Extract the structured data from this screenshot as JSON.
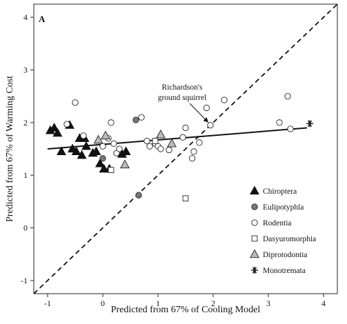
{
  "chart_data": {
    "type": "scatter",
    "panel_label": "A",
    "xlabel": "Predicted from 67% of Cooling Model",
    "ylabel": "Predicted from 67% of Warming Cost",
    "xlim": [
      -1.25,
      4.25
    ],
    "ylim": [
      -1.25,
      4.25
    ],
    "xticks": [
      -1,
      0,
      1,
      2,
      3,
      4
    ],
    "yticks": [
      -1,
      0,
      1,
      2,
      3,
      4
    ],
    "grid": false,
    "legend_position": "bottom-right",
    "colors": {
      "filled": "#111111",
      "dark_gray": "#777777",
      "light_gray": "#bbbbbb",
      "open": "#ffffff",
      "line": "#111111"
    },
    "series": [
      {
        "name": "Chiroptera",
        "marker": "triangle",
        "fill": "filled",
        "points": [
          {
            "x": -0.95,
            "y": 1.85
          },
          {
            "x": -0.88,
            "y": 1.9
          },
          {
            "x": -0.82,
            "y": 1.8
          },
          {
            "x": -0.75,
            "y": 1.45
          },
          {
            "x": -0.55,
            "y": 1.5
          },
          {
            "x": -0.48,
            "y": 1.45
          },
          {
            "x": -0.42,
            "y": 1.7
          },
          {
            "x": -0.38,
            "y": 1.38
          },
          {
            "x": -0.3,
            "y": 1.55
          },
          {
            "x": -0.18,
            "y": 1.42
          },
          {
            "x": -0.12,
            "y": 1.45
          },
          {
            "x": -0.05,
            "y": 1.22
          },
          {
            "x": 0.02,
            "y": 1.12
          },
          {
            "x": 0.12,
            "y": 1.12
          },
          {
            "x": 0.35,
            "y": 1.4
          },
          {
            "x": 0.42,
            "y": 1.45
          },
          {
            "x": -0.6,
            "y": 1.95
          },
          {
            "x": -0.33,
            "y": 1.7
          }
        ]
      },
      {
        "name": "Eulipotyphla",
        "marker": "circle",
        "fill": "dark_gray",
        "points": [
          {
            "x": 0.0,
            "y": 1.32
          },
          {
            "x": 0.6,
            "y": 2.05
          },
          {
            "x": 0.65,
            "y": 0.62
          }
        ]
      },
      {
        "name": "Rodentia",
        "marker": "circle",
        "fill": "open",
        "points": [
          {
            "x": -0.5,
            "y": 2.38
          },
          {
            "x": -0.65,
            "y": 1.97
          },
          {
            "x": -0.35,
            "y": 1.75
          },
          {
            "x": 0.0,
            "y": 1.55
          },
          {
            "x": 0.1,
            "y": 1.7
          },
          {
            "x": 0.15,
            "y": 2.0
          },
          {
            "x": 0.2,
            "y": 1.6
          },
          {
            "x": 0.25,
            "y": 1.42
          },
          {
            "x": 0.3,
            "y": 1.5
          },
          {
            "x": 0.7,
            "y": 2.1
          },
          {
            "x": 0.8,
            "y": 1.65
          },
          {
            "x": 0.85,
            "y": 1.55
          },
          {
            "x": 0.95,
            "y": 1.6
          },
          {
            "x": 1.0,
            "y": 1.55
          },
          {
            "x": 1.05,
            "y": 1.5
          },
          {
            "x": 1.2,
            "y": 1.48
          },
          {
            "x": 1.45,
            "y": 1.72
          },
          {
            "x": 1.5,
            "y": 1.9
          },
          {
            "x": 1.62,
            "y": 1.32
          },
          {
            "x": 1.65,
            "y": 1.45
          },
          {
            "x": 1.75,
            "y": 1.62
          },
          {
            "x": 1.88,
            "y": 2.28
          },
          {
            "x": 1.95,
            "y": 1.95
          },
          {
            "x": 2.2,
            "y": 2.43
          },
          {
            "x": 3.2,
            "y": 2.0
          },
          {
            "x": 3.35,
            "y": 2.5
          },
          {
            "x": 3.4,
            "y": 1.88
          }
        ]
      },
      {
        "name": "Dasyuromorphia",
        "marker": "square",
        "fill": "open",
        "points": [
          {
            "x": 0.15,
            "y": 1.1
          },
          {
            "x": 0.95,
            "y": 1.65
          },
          {
            "x": 1.5,
            "y": 0.56
          }
        ]
      },
      {
        "name": "Diprotodontia",
        "marker": "triangle",
        "fill": "light_gray",
        "points": [
          {
            "x": -0.08,
            "y": 1.67
          },
          {
            "x": 0.05,
            "y": 1.75
          },
          {
            "x": 0.4,
            "y": 1.2
          },
          {
            "x": 1.05,
            "y": 1.77
          },
          {
            "x": 1.25,
            "y": 1.6
          }
        ]
      },
      {
        "name": "Monotremata",
        "marker": "asterisk",
        "fill": "filled",
        "points": [
          {
            "x": 3.75,
            "y": 1.98
          }
        ]
      }
    ],
    "regression_line": {
      "x": [
        -1.0,
        3.7
      ],
      "y": [
        1.5,
        1.9
      ],
      "style": "solid"
    },
    "identity_line": {
      "x": [
        -1.25,
        4.25
      ],
      "y": [
        -1.25,
        4.25
      ],
      "style": "dashed"
    },
    "annotations": [
      {
        "text_lines": [
          "Richardson's",
          "ground squirrel"
        ],
        "arrow_to": {
          "x": 1.95,
          "y": 1.95
        }
      }
    ]
  }
}
